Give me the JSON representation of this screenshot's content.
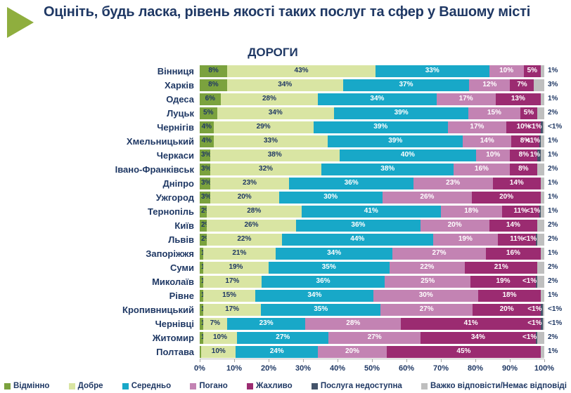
{
  "header": {
    "title": "Оцініть, будь ласка, рівень якості таких послуг та сфер у Вашому місті"
  },
  "accent": {
    "title_color": "#1F3864",
    "arrow_color": "#8FAE3E"
  },
  "chart_data": {
    "type": "bar",
    "subtype": "stacked-horizontal-percent",
    "title": "ДОРОГИ",
    "orientation": "horizontal",
    "xlim": [
      0,
      100
    ],
    "x_ticks": [
      "0%",
      "10%",
      "20%",
      "30%",
      "40%",
      "50%",
      "60%",
      "70%",
      "80%",
      "90%",
      "100%"
    ],
    "legend_position": "bottom",
    "colors": {
      "vidminno": "#7BA23E",
      "dobre": "#D9E5A3",
      "seredno": "#18A8C8",
      "pohano": "#C383B3",
      "zhakhlyvo": "#9B2B71",
      "nedostupna": "#44546A",
      "vazhko": "#BFBFBF"
    },
    "text_colors": {
      "vidminno": "#1F3864",
      "dobre": "#1F3864",
      "seredno": "#FFFFFF",
      "pohano": "#FFFFFF",
      "zhakhlyvo": "#FFFFFF",
      "nedostupna": "#FFFFFF",
      "vazhko": "#1F3864"
    },
    "legend": [
      {
        "key": "vidminno",
        "label": "Відмінно"
      },
      {
        "key": "dobre",
        "label": "Добре"
      },
      {
        "key": "seredno",
        "label": "Середньо"
      },
      {
        "key": "pohano",
        "label": "Погано"
      },
      {
        "key": "zhakhlyvo",
        "label": "Жахливо"
      },
      {
        "key": "nedostupna",
        "label": "Послуга недоступна"
      },
      {
        "key": "vazhko",
        "label": "Важко відповісти/Немає відповіді"
      }
    ],
    "rows": [
      {
        "city": "Вінниця",
        "segments": [
          {
            "key": "vidminno",
            "value": 8,
            "label": "8%"
          },
          {
            "key": "dobre",
            "value": 43,
            "label": "43%"
          },
          {
            "key": "seredno",
            "value": 33,
            "label": "33%"
          },
          {
            "key": "pohano",
            "value": 10,
            "label": "10%"
          },
          {
            "key": "zhakhlyvo",
            "value": 5,
            "label": "5%"
          },
          {
            "key": "vazhko",
            "value": 1,
            "label": "1%",
            "anchor": "out"
          }
        ]
      },
      {
        "city": "Харків",
        "segments": [
          {
            "key": "vidminno",
            "value": 8,
            "label": "8%"
          },
          {
            "key": "dobre",
            "value": 34,
            "label": "34%"
          },
          {
            "key": "seredno",
            "value": 37,
            "label": "37%"
          },
          {
            "key": "pohano",
            "value": 12,
            "label": "12%"
          },
          {
            "key": "zhakhlyvo",
            "value": 7,
            "label": "7%"
          },
          {
            "key": "vazhko",
            "value": 3,
            "label": "3%",
            "anchor": "out"
          }
        ]
      },
      {
        "city": "Одеса",
        "segments": [
          {
            "key": "vidminno",
            "value": 6,
            "label": "6%"
          },
          {
            "key": "dobre",
            "value": 28,
            "label": "28%"
          },
          {
            "key": "seredno",
            "value": 34,
            "label": "34%"
          },
          {
            "key": "pohano",
            "value": 17,
            "label": "17%"
          },
          {
            "key": "zhakhlyvo",
            "value": 13,
            "label": "13%"
          },
          {
            "key": "vazhko",
            "value": 1,
            "label": "1%",
            "anchor": "out"
          }
        ]
      },
      {
        "city": "Луцьк",
        "segments": [
          {
            "key": "vidminno",
            "value": 5,
            "label": "5%"
          },
          {
            "key": "dobre",
            "value": 34,
            "label": "34%"
          },
          {
            "key": "seredno",
            "value": 39,
            "label": "39%"
          },
          {
            "key": "pohano",
            "value": 15,
            "label": "15%"
          },
          {
            "key": "zhakhlyvo",
            "value": 5,
            "label": "5%"
          },
          {
            "key": "vazhko",
            "value": 2,
            "label": "2%",
            "anchor": "out"
          }
        ]
      },
      {
        "city": "Чернігів",
        "segments": [
          {
            "key": "vidminno",
            "value": 4,
            "label": "4%"
          },
          {
            "key": "dobre",
            "value": 29,
            "label": "29%"
          },
          {
            "key": "seredno",
            "value": 39,
            "label": "39%"
          },
          {
            "key": "pohano",
            "value": 17,
            "label": "17%"
          },
          {
            "key": "zhakhlyvo",
            "value": 10,
            "label": "10%"
          },
          {
            "key": "nedostupna",
            "value": 0.5,
            "label": "<1%",
            "anchor": "right"
          },
          {
            "key": "vazhko",
            "value": 0.5,
            "label": "<1%",
            "anchor": "out"
          }
        ]
      },
      {
        "city": "Хмельницький",
        "segments": [
          {
            "key": "vidminno",
            "value": 4,
            "label": "4%"
          },
          {
            "key": "dobre",
            "value": 33,
            "label": "33%"
          },
          {
            "key": "seredno",
            "value": 39,
            "label": "39%"
          },
          {
            "key": "pohano",
            "value": 14,
            "label": "14%"
          },
          {
            "key": "zhakhlyvo",
            "value": 8,
            "label": "8%"
          },
          {
            "key": "nedostupna",
            "value": 0.5,
            "label": "<1%",
            "anchor": "right"
          },
          {
            "key": "vazhko",
            "value": 1,
            "label": "1%",
            "anchor": "out"
          }
        ]
      },
      {
        "city": "Черкаси",
        "segments": [
          {
            "key": "vidminno",
            "value": 3,
            "label": "3%",
            "anchor": "left"
          },
          {
            "key": "dobre",
            "value": 38,
            "label": "38%"
          },
          {
            "key": "seredno",
            "value": 40,
            "label": "40%"
          },
          {
            "key": "pohano",
            "value": 10,
            "label": "10%"
          },
          {
            "key": "zhakhlyvo",
            "value": 8,
            "label": "8%"
          },
          {
            "key": "nedostupna",
            "value": 1,
            "label": "1%",
            "anchor": "right"
          },
          {
            "key": "vazhko",
            "value": 1,
            "label": "1%",
            "anchor": "out"
          }
        ]
      },
      {
        "city": "Івано-Франківськ",
        "segments": [
          {
            "key": "vidminno",
            "value": 3,
            "label": "3%",
            "anchor": "left"
          },
          {
            "key": "dobre",
            "value": 32,
            "label": "32%"
          },
          {
            "key": "seredno",
            "value": 38,
            "label": "38%"
          },
          {
            "key": "pohano",
            "value": 16,
            "label": "16%"
          },
          {
            "key": "zhakhlyvo",
            "value": 8,
            "label": "8%"
          },
          {
            "key": "vazhko",
            "value": 2,
            "label": "2%",
            "anchor": "out"
          }
        ]
      },
      {
        "city": "Дніпро",
        "segments": [
          {
            "key": "vidminno",
            "value": 3,
            "label": "3%",
            "anchor": "left"
          },
          {
            "key": "dobre",
            "value": 23,
            "label": "23%"
          },
          {
            "key": "seredno",
            "value": 36,
            "label": "36%"
          },
          {
            "key": "pohano",
            "value": 23,
            "label": "23%"
          },
          {
            "key": "zhakhlyvo",
            "value": 14,
            "label": "14%"
          },
          {
            "key": "vazhko",
            "value": 1,
            "label": "1%",
            "anchor": "out"
          }
        ]
      },
      {
        "city": "Ужгород",
        "segments": [
          {
            "key": "vidminno",
            "value": 3,
            "label": "3%",
            "anchor": "left"
          },
          {
            "key": "dobre",
            "value": 20,
            "label": "20%"
          },
          {
            "key": "seredno",
            "value": 30,
            "label": "30%"
          },
          {
            "key": "pohano",
            "value": 26,
            "label": "26%"
          },
          {
            "key": "zhakhlyvo",
            "value": 20,
            "label": "20%"
          },
          {
            "key": "vazhko",
            "value": 1,
            "label": "1%",
            "anchor": "out"
          }
        ]
      },
      {
        "city": "Тернопіль",
        "segments": [
          {
            "key": "vidminno",
            "value": 2,
            "label": "2%",
            "anchor": "left"
          },
          {
            "key": "dobre",
            "value": 28,
            "label": "28%"
          },
          {
            "key": "seredno",
            "value": 41,
            "label": "41%"
          },
          {
            "key": "pohano",
            "value": 18,
            "label": "18%"
          },
          {
            "key": "zhakhlyvo",
            "value": 11,
            "label": "11%"
          },
          {
            "key": "nedostupna",
            "value": 0.5,
            "label": "<1%",
            "anchor": "right"
          },
          {
            "key": "vazhko",
            "value": 1,
            "label": "1%",
            "anchor": "out"
          }
        ]
      },
      {
        "city": "Київ",
        "segments": [
          {
            "key": "vidminno",
            "value": 2,
            "label": "2%",
            "anchor": "left"
          },
          {
            "key": "dobre",
            "value": 26,
            "label": "26%"
          },
          {
            "key": "seredno",
            "value": 36,
            "label": "36%"
          },
          {
            "key": "pohano",
            "value": 20,
            "label": "20%"
          },
          {
            "key": "zhakhlyvo",
            "value": 14,
            "label": "14%"
          },
          {
            "key": "vazhko",
            "value": 2,
            "label": "2%",
            "anchor": "out"
          }
        ]
      },
      {
        "city": "Львів",
        "segments": [
          {
            "key": "vidminno",
            "value": 2,
            "label": "2%",
            "anchor": "left"
          },
          {
            "key": "dobre",
            "value": 22,
            "label": "22%"
          },
          {
            "key": "seredno",
            "value": 44,
            "label": "44%"
          },
          {
            "key": "pohano",
            "value": 19,
            "label": "19%"
          },
          {
            "key": "zhakhlyvo",
            "value": 11,
            "label": "11%"
          },
          {
            "key": "nedostupna",
            "value": 0.5,
            "label": "<1%",
            "anchor": "right"
          },
          {
            "key": "vazhko",
            "value": 2,
            "label": "2%",
            "anchor": "out"
          }
        ]
      },
      {
        "city": "Запоріжжя",
        "segments": [
          {
            "key": "vidminno",
            "value": 1,
            "label": "1%",
            "anchor": "left"
          },
          {
            "key": "dobre",
            "value": 21,
            "label": "21%"
          },
          {
            "key": "seredno",
            "value": 34,
            "label": "34%"
          },
          {
            "key": "pohano",
            "value": 27,
            "label": "27%"
          },
          {
            "key": "zhakhlyvo",
            "value": 16,
            "label": "16%"
          },
          {
            "key": "vazhko",
            "value": 1,
            "label": "1%",
            "anchor": "out"
          }
        ]
      },
      {
        "city": "Суми",
        "segments": [
          {
            "key": "vidminno",
            "value": 1,
            "label": "1%",
            "anchor": "left"
          },
          {
            "key": "dobre",
            "value": 19,
            "label": "19%"
          },
          {
            "key": "seredno",
            "value": 35,
            "label": "35%"
          },
          {
            "key": "pohano",
            "value": 22,
            "label": "22%"
          },
          {
            "key": "zhakhlyvo",
            "value": 21,
            "label": "21%"
          },
          {
            "key": "vazhko",
            "value": 2,
            "label": "2%",
            "anchor": "out"
          }
        ]
      },
      {
        "city": "Миколаїв",
        "segments": [
          {
            "key": "vidminno",
            "value": 1,
            "label": "1%",
            "anchor": "left"
          },
          {
            "key": "dobre",
            "value": 17,
            "label": "17%"
          },
          {
            "key": "seredno",
            "value": 36,
            "label": "36%"
          },
          {
            "key": "pohano",
            "value": 25,
            "label": "25%"
          },
          {
            "key": "zhakhlyvo",
            "value": 19,
            "label": "19%"
          },
          {
            "key": "nedostupna",
            "value": 0.5,
            "label": "<1%",
            "anchor": "right"
          },
          {
            "key": "vazhko",
            "value": 2,
            "label": "2%",
            "anchor": "out"
          }
        ]
      },
      {
        "city": "Рівне",
        "segments": [
          {
            "key": "vidminno",
            "value": 1,
            "label": "1%",
            "anchor": "left"
          },
          {
            "key": "dobre",
            "value": 15,
            "label": "15%"
          },
          {
            "key": "seredno",
            "value": 34,
            "label": "34%"
          },
          {
            "key": "pohano",
            "value": 30,
            "label": "30%"
          },
          {
            "key": "zhakhlyvo",
            "value": 18,
            "label": "18%"
          },
          {
            "key": "vazhko",
            "value": 1,
            "label": "1%",
            "anchor": "out"
          }
        ]
      },
      {
        "city": "Кропивницький",
        "segments": [
          {
            "key": "vidminno",
            "value": 1,
            "label": "1%",
            "anchor": "left"
          },
          {
            "key": "dobre",
            "value": 17,
            "label": "17%"
          },
          {
            "key": "seredno",
            "value": 35,
            "label": "35%"
          },
          {
            "key": "pohano",
            "value": 27,
            "label": "27%"
          },
          {
            "key": "zhakhlyvo",
            "value": 20,
            "label": "20%"
          },
          {
            "key": "nedostupna",
            "value": 0.5,
            "label": "<1%",
            "anchor": "right"
          },
          {
            "key": "vazhko",
            "value": 0.5,
            "label": "<1%",
            "anchor": "out"
          }
        ]
      },
      {
        "city": "Чернівці",
        "segments": [
          {
            "key": "vidminno",
            "value": 1,
            "label": "1%",
            "anchor": "left"
          },
          {
            "key": "dobre",
            "value": 7,
            "label": "7%"
          },
          {
            "key": "seredno",
            "value": 23,
            "label": "23%"
          },
          {
            "key": "pohano",
            "value": 28,
            "label": "28%"
          },
          {
            "key": "zhakhlyvo",
            "value": 41,
            "label": "41%"
          },
          {
            "key": "nedostupna",
            "value": 0.5,
            "label": "<1%",
            "anchor": "right"
          },
          {
            "key": "vazhko",
            "value": 0.5,
            "label": "<1%",
            "anchor": "out"
          }
        ]
      },
      {
        "city": "Житомир",
        "segments": [
          {
            "key": "vidminno",
            "value": 1,
            "label": "1%",
            "anchor": "left"
          },
          {
            "key": "dobre",
            "value": 10,
            "label": "10%"
          },
          {
            "key": "seredno",
            "value": 27,
            "label": "27%"
          },
          {
            "key": "pohano",
            "value": 27,
            "label": "27%"
          },
          {
            "key": "zhakhlyvo",
            "value": 34,
            "label": "34%"
          },
          {
            "key": "nedostupna",
            "value": 0.5,
            "label": "<1%",
            "anchor": "right"
          },
          {
            "key": "vazhko",
            "value": 2,
            "label": "2%",
            "anchor": "out"
          }
        ]
      },
      {
        "city": "Полтава",
        "segments": [
          {
            "key": "vidminno",
            "value": 0.5,
            "label": "<1%",
            "anchor": "left"
          },
          {
            "key": "dobre",
            "value": 10,
            "label": "10%"
          },
          {
            "key": "seredno",
            "value": 24,
            "label": "24%"
          },
          {
            "key": "pohano",
            "value": 20,
            "label": "20%"
          },
          {
            "key": "zhakhlyvo",
            "value": 45,
            "label": "45%"
          },
          {
            "key": "vazhko",
            "value": 1,
            "label": "1%",
            "anchor": "out"
          }
        ]
      }
    ]
  }
}
